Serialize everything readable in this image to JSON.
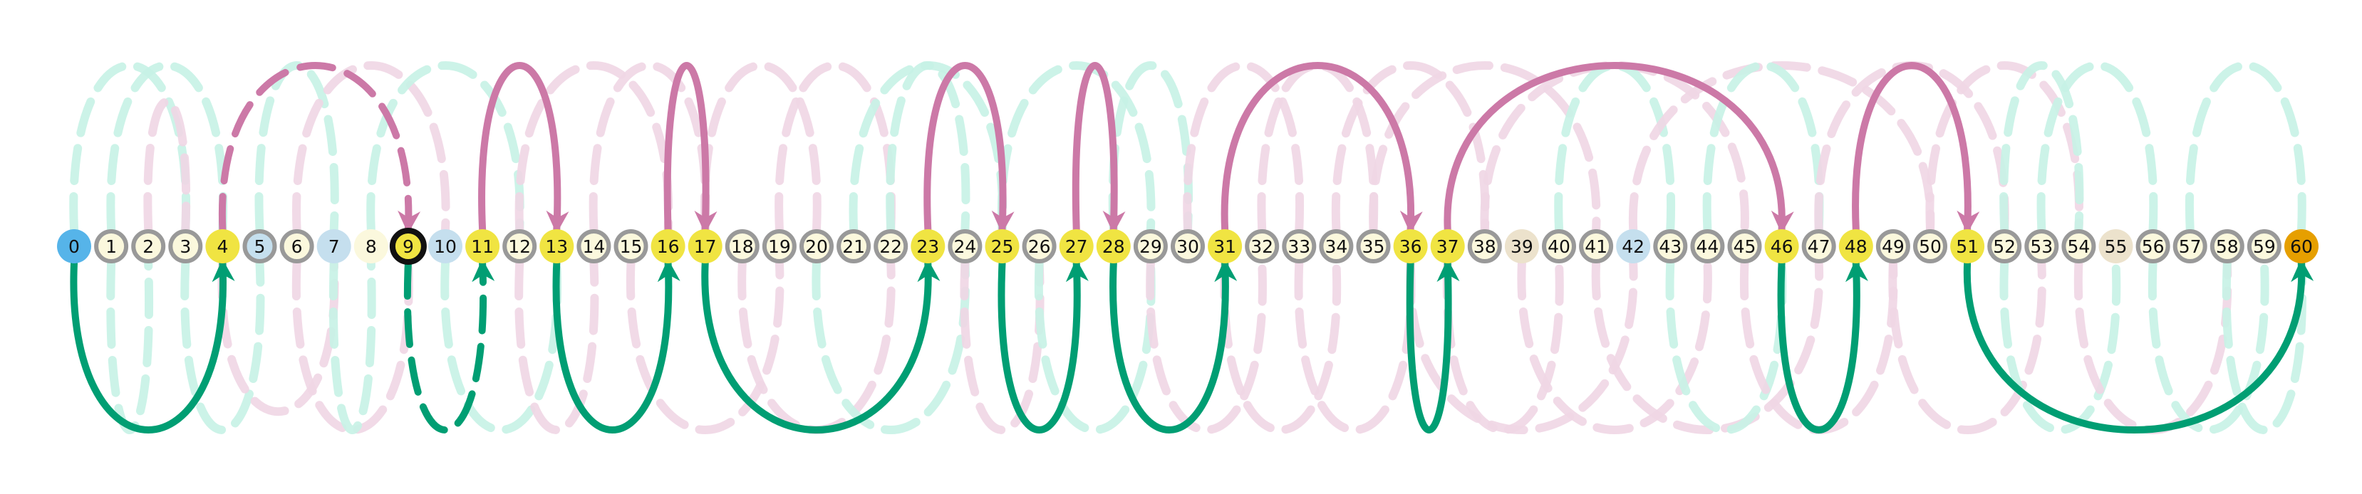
{
  "colors": {
    "pink": "#cc79a7",
    "green": "#009e73",
    "pink_faint": "#efd6e4",
    "green_faint": "#c6f2e5",
    "node_cream": "#fbf8dd",
    "node_ring": "#999999",
    "node_yellow": "#f0e442",
    "node_blue": "#56b4e9",
    "node_lightblue": "#c5dfee",
    "node_beige": "#ece2cc",
    "node_orange": "#e69f00",
    "current_ring": "#111111"
  },
  "nodes": [
    {
      "label": "0",
      "fill": "blue",
      "ring": false
    },
    {
      "label": "1",
      "fill": "cream",
      "ring": true
    },
    {
      "label": "2",
      "fill": "cream",
      "ring": true
    },
    {
      "label": "3",
      "fill": "cream",
      "ring": true
    },
    {
      "label": "4",
      "fill": "yellow",
      "ring": false
    },
    {
      "label": "5",
      "fill": "lightblue",
      "ring": true
    },
    {
      "label": "6",
      "fill": "cream",
      "ring": true
    },
    {
      "label": "7",
      "fill": "lightblue",
      "ring": false
    },
    {
      "label": "8",
      "fill": "cream",
      "ring": false
    },
    {
      "label": "9",
      "fill": "yellow",
      "ring": false,
      "current": true
    },
    {
      "label": "10",
      "fill": "lightblue",
      "ring": false
    },
    {
      "label": "11",
      "fill": "yellow",
      "ring": false
    },
    {
      "label": "12",
      "fill": "cream",
      "ring": true
    },
    {
      "label": "13",
      "fill": "yellow",
      "ring": false
    },
    {
      "label": "14",
      "fill": "cream",
      "ring": true
    },
    {
      "label": "15",
      "fill": "cream",
      "ring": true
    },
    {
      "label": "16",
      "fill": "yellow",
      "ring": false
    },
    {
      "label": "17",
      "fill": "yellow",
      "ring": false
    },
    {
      "label": "18",
      "fill": "cream",
      "ring": true
    },
    {
      "label": "19",
      "fill": "cream",
      "ring": true
    },
    {
      "label": "20",
      "fill": "cream",
      "ring": true
    },
    {
      "label": "21",
      "fill": "cream",
      "ring": true
    },
    {
      "label": "22",
      "fill": "cream",
      "ring": true
    },
    {
      "label": "23",
      "fill": "yellow",
      "ring": false
    },
    {
      "label": "24",
      "fill": "cream",
      "ring": true
    },
    {
      "label": "25",
      "fill": "yellow",
      "ring": false
    },
    {
      "label": "26",
      "fill": "cream",
      "ring": true
    },
    {
      "label": "27",
      "fill": "yellow",
      "ring": false
    },
    {
      "label": "28",
      "fill": "yellow",
      "ring": false
    },
    {
      "label": "29",
      "fill": "cream",
      "ring": true
    },
    {
      "label": "30",
      "fill": "cream",
      "ring": true
    },
    {
      "label": "31",
      "fill": "yellow",
      "ring": false
    },
    {
      "label": "32",
      "fill": "cream",
      "ring": true
    },
    {
      "label": "33",
      "fill": "cream",
      "ring": true
    },
    {
      "label": "34",
      "fill": "cream",
      "ring": true
    },
    {
      "label": "35",
      "fill": "cream",
      "ring": true
    },
    {
      "label": "36",
      "fill": "yellow",
      "ring": false
    },
    {
      "label": "37",
      "fill": "yellow",
      "ring": false
    },
    {
      "label": "38",
      "fill": "cream",
      "ring": true
    },
    {
      "label": "39",
      "fill": "beige",
      "ring": false
    },
    {
      "label": "40",
      "fill": "cream",
      "ring": true
    },
    {
      "label": "41",
      "fill": "cream",
      "ring": true
    },
    {
      "label": "42",
      "fill": "lightblue",
      "ring": false
    },
    {
      "label": "43",
      "fill": "cream",
      "ring": true
    },
    {
      "label": "44",
      "fill": "cream",
      "ring": true
    },
    {
      "label": "45",
      "fill": "cream",
      "ring": true
    },
    {
      "label": "46",
      "fill": "yellow",
      "ring": false
    },
    {
      "label": "47",
      "fill": "cream",
      "ring": true
    },
    {
      "label": "48",
      "fill": "yellow",
      "ring": false
    },
    {
      "label": "49",
      "fill": "cream",
      "ring": true
    },
    {
      "label": "50",
      "fill": "cream",
      "ring": true
    },
    {
      "label": "51",
      "fill": "yellow",
      "ring": false
    },
    {
      "label": "52",
      "fill": "cream",
      "ring": true
    },
    {
      "label": "53",
      "fill": "cream",
      "ring": true
    },
    {
      "label": "54",
      "fill": "cream",
      "ring": true
    },
    {
      "label": "55",
      "fill": "beige",
      "ring": false
    },
    {
      "label": "56",
      "fill": "cream",
      "ring": true
    },
    {
      "label": "57",
      "fill": "cream",
      "ring": true
    },
    {
      "label": "58",
      "fill": "cream",
      "ring": true
    },
    {
      "label": "59",
      "fill": "cream",
      "ring": true
    },
    {
      "label": "60",
      "fill": "orange",
      "ring": false
    }
  ],
  "highlighted_edges": [
    {
      "from": 0,
      "to": 4,
      "side": "below",
      "color": "green",
      "dashed": false,
      "height": 1.0
    },
    {
      "from": 4,
      "to": 9,
      "side": "above",
      "color": "pink",
      "dashed": true,
      "height": 1.0
    },
    {
      "from": 9,
      "to": 11,
      "side": "below",
      "color": "green",
      "dashed": true,
      "height": 1.0
    },
    {
      "from": 11,
      "to": 13,
      "side": "above",
      "color": "pink",
      "dashed": false,
      "height": 1.0
    },
    {
      "from": 13,
      "to": 16,
      "side": "below",
      "color": "green",
      "dashed": false,
      "height": 1.0
    },
    {
      "from": 16,
      "to": 17,
      "side": "above",
      "color": "pink",
      "dashed": false,
      "height": 1.0
    },
    {
      "from": 17,
      "to": 23,
      "side": "below",
      "color": "green",
      "dashed": false,
      "height": 1.0
    },
    {
      "from": 23,
      "to": 25,
      "side": "above",
      "color": "pink",
      "dashed": false,
      "height": 1.0
    },
    {
      "from": 25,
      "to": 27,
      "side": "below",
      "color": "green",
      "dashed": false,
      "height": 1.0
    },
    {
      "from": 27,
      "to": 28,
      "side": "above",
      "color": "pink",
      "dashed": false,
      "height": 1.0
    },
    {
      "from": 28,
      "to": 31,
      "side": "below",
      "color": "green",
      "dashed": false,
      "height": 1.0
    },
    {
      "from": 31,
      "to": 36,
      "side": "above",
      "color": "pink",
      "dashed": false,
      "height": 1.0
    },
    {
      "from": 36,
      "to": 37,
      "side": "below",
      "color": "green",
      "dashed": false,
      "height": 1.0
    },
    {
      "from": 37,
      "to": 46,
      "side": "above",
      "color": "pink",
      "dashed": false,
      "height": 1.0
    },
    {
      "from": 46,
      "to": 48,
      "side": "below",
      "color": "green",
      "dashed": false,
      "height": 1.0
    },
    {
      "from": 48,
      "to": 51,
      "side": "above",
      "color": "pink",
      "dashed": false,
      "height": 1.0
    },
    {
      "from": 51,
      "to": 60,
      "side": "below",
      "color": "green",
      "dashed": false,
      "height": 1.0
    }
  ],
  "background_edges": [
    {
      "from": 0,
      "to": 3,
      "side": "above",
      "color": "green",
      "height": 1.0
    },
    {
      "from": 1,
      "to": 4,
      "side": "above",
      "color": "green",
      "height": 1.0
    },
    {
      "from": 2,
      "to": 3,
      "side": "above",
      "color": "pink",
      "height": 0.8
    },
    {
      "from": 1,
      "to": 2,
      "side": "below",
      "color": "green",
      "height": 1.0
    },
    {
      "from": 3,
      "to": 5,
      "side": "below",
      "color": "green",
      "height": 1.0
    },
    {
      "from": 4,
      "to": 7,
      "side": "below",
      "color": "pink",
      "height": 0.9
    },
    {
      "from": 5,
      "to": 7,
      "side": "above",
      "color": "green",
      "height": 1.0
    },
    {
      "from": 6,
      "to": 10,
      "side": "above",
      "color": "pink",
      "height": 1.0
    },
    {
      "from": 6,
      "to": 9,
      "side": "below",
      "color": "pink",
      "height": 1.0
    },
    {
      "from": 7,
      "to": 8,
      "side": "below",
      "color": "green",
      "height": 1.0
    },
    {
      "from": 8,
      "to": 12,
      "side": "above",
      "color": "green",
      "height": 1.0
    },
    {
      "from": 10,
      "to": 13,
      "side": "below",
      "color": "green",
      "height": 1.0
    },
    {
      "from": 12,
      "to": 16,
      "side": "above",
      "color": "pink",
      "height": 1.0
    },
    {
      "from": 12,
      "to": 14,
      "side": "below",
      "color": "pink",
      "height": 1.0
    },
    {
      "from": 14,
      "to": 17,
      "side": "above",
      "color": "pink",
      "height": 1.0
    },
    {
      "from": 15,
      "to": 19,
      "side": "below",
      "color": "pink",
      "height": 1.0
    },
    {
      "from": 17,
      "to": 20,
      "side": "above",
      "color": "pink",
      "height": 1.0
    },
    {
      "from": 18,
      "to": 22,
      "side": "below",
      "color": "pink",
      "height": 1.0
    },
    {
      "from": 19,
      "to": 22,
      "side": "above",
      "color": "pink",
      "height": 1.0
    },
    {
      "from": 20,
      "to": 24,
      "side": "below",
      "color": "green",
      "height": 1.0
    },
    {
      "from": 21,
      "to": 25,
      "side": "above",
      "color": "green",
      "height": 1.0
    },
    {
      "from": 22,
      "to": 24,
      "side": "above",
      "color": "green",
      "height": 1.0
    },
    {
      "from": 24,
      "to": 26,
      "side": "below",
      "color": "pink",
      "height": 1.0
    },
    {
      "from": 25,
      "to": 29,
      "side": "above",
      "color": "green",
      "height": 1.0
    },
    {
      "from": 26,
      "to": 29,
      "side": "below",
      "color": "green",
      "height": 1.0
    },
    {
      "from": 28,
      "to": 30,
      "side": "above",
      "color": "green",
      "height": 1.0
    },
    {
      "from": 29,
      "to": 32,
      "side": "below",
      "color": "pink",
      "height": 1.0
    },
    {
      "from": 30,
      "to": 33,
      "side": "above",
      "color": "pink",
      "height": 1.0
    },
    {
      "from": 31,
      "to": 34,
      "side": "below",
      "color": "pink",
      "height": 1.0
    },
    {
      "from": 32,
      "to": 35,
      "side": "above",
      "color": "pink",
      "height": 1.0
    },
    {
      "from": 33,
      "to": 36,
      "side": "below",
      "color": "pink",
      "height": 1.0
    },
    {
      "from": 34,
      "to": 38,
      "side": "above",
      "color": "pink",
      "height": 1.0
    },
    {
      "from": 35,
      "to": 41,
      "side": "above",
      "color": "pink",
      "height": 1.0
    },
    {
      "from": 36,
      "to": 42,
      "side": "below",
      "color": "pink",
      "height": 1.0
    },
    {
      "from": 37,
      "to": 40,
      "side": "below",
      "color": "pink",
      "height": 1.0
    },
    {
      "from": 38,
      "to": 45,
      "side": "above",
      "color": "pink",
      "height": 1.0
    },
    {
      "from": 39,
      "to": 44,
      "side": "below",
      "color": "pink",
      "height": 1.0
    },
    {
      "from": 40,
      "to": 43,
      "side": "above",
      "color": "green",
      "height": 1.0
    },
    {
      "from": 41,
      "to": 47,
      "side": "below",
      "color": "pink",
      "height": 1.0
    },
    {
      "from": 42,
      "to": 50,
      "side": "above",
      "color": "pink",
      "height": 1.0
    },
    {
      "from": 43,
      "to": 46,
      "side": "below",
      "color": "green",
      "height": 1.0
    },
    {
      "from": 44,
      "to": 47,
      "side": "above",
      "color": "green",
      "height": 1.0
    },
    {
      "from": 45,
      "to": 49,
      "side": "below",
      "color": "pink",
      "height": 1.0
    },
    {
      "from": 47,
      "to": 52,
      "side": "above",
      "color": "pink",
      "height": 1.0
    },
    {
      "from": 49,
      "to": 53,
      "side": "below",
      "color": "pink",
      "height": 1.0
    },
    {
      "from": 50,
      "to": 54,
      "side": "above",
      "color": "pink",
      "height": 1.0
    },
    {
      "from": 52,
      "to": 54,
      "side": "above",
      "color": "green",
      "height": 1.0
    },
    {
      "from": 52,
      "to": 55,
      "side": "below",
      "color": "green",
      "height": 1.0
    },
    {
      "from": 53,
      "to": 56,
      "side": "above",
      "color": "green",
      "height": 1.0
    },
    {
      "from": 54,
      "to": 58,
      "side": "below",
      "color": "pink",
      "height": 1.0
    },
    {
      "from": 56,
      "to": 59,
      "side": "below",
      "color": "green",
      "height": 1.0
    },
    {
      "from": 57,
      "to": 60,
      "side": "above",
      "color": "green",
      "height": 1.0
    },
    {
      "from": 58,
      "to": 60,
      "side": "below",
      "color": "green",
      "height": 1.0
    }
  ]
}
